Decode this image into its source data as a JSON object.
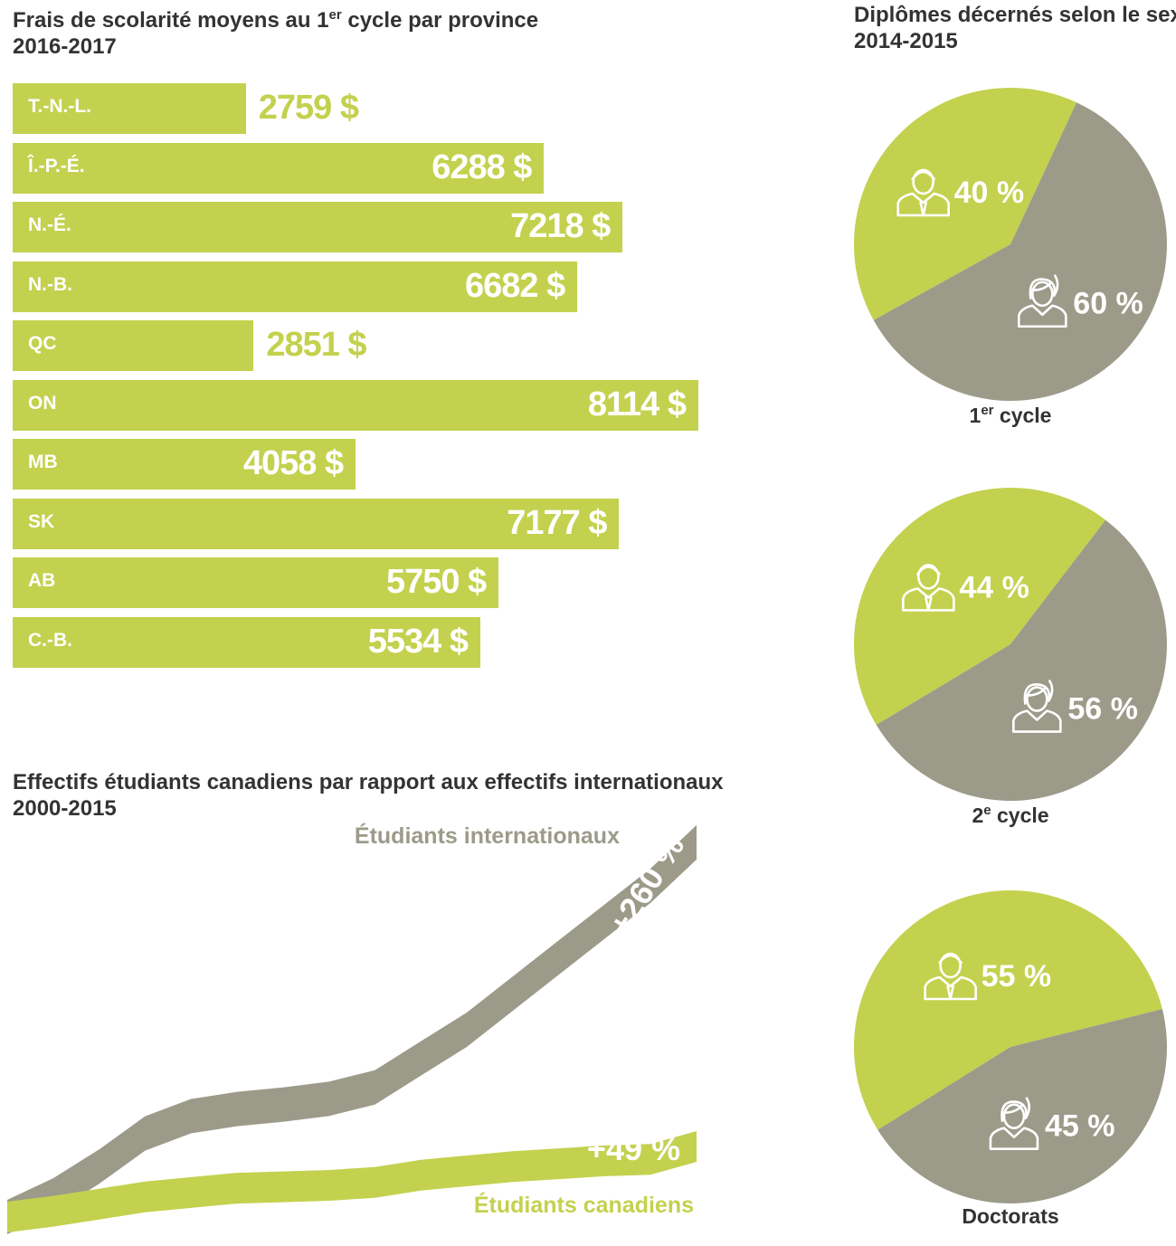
{
  "bar_chart": {
    "title_prefix": "Frais de scolarité moyens au 1",
    "title_sup": "er",
    "title_suffix": " cycle par province",
    "title_line2": "2016-2017"
  },
  "pie_section": {
    "title_line1": "Diplômes décernés selon le sexe",
    "title_line2": "2014-2015"
  },
  "line_chart": {
    "title_line1": "Effectifs étudiants canadiens par rapport aux effectifs internationaux",
    "title_line2": "2000-2015"
  },
  "colors": {
    "green": "#c3d14e",
    "gray": "#9c9b8a",
    "text": "#333333"
  },
  "chart_data": [
    {
      "type": "bar",
      "categories": [
        "T.-N.-L.",
        "Î.-P.-É.",
        "N.-É.",
        "N.-B.",
        "QC",
        "ON",
        "MB",
        "SK",
        "AB",
        "C.-B."
      ],
      "values": [
        2759,
        6288,
        7218,
        6682,
        2851,
        8114,
        4058,
        7177,
        5750,
        5534
      ],
      "value_labels": [
        "2759 $",
        "6288 $",
        "7218 $",
        "6682 $",
        "2851 $",
        "8114 $",
        "4058 $",
        "7177 $",
        "5750 $",
        "5534 $"
      ]
    },
    {
      "type": "pie",
      "label_prefix": "1",
      "label_sup": "er",
      "label_suffix": " cycle",
      "slices": [
        {
          "value": 40,
          "label": "40 %",
          "color": "#c3d14e",
          "icon": "man-icon"
        },
        {
          "value": 60,
          "label": "60 %",
          "color": "#9c9b8a",
          "icon": "woman-icon"
        }
      ]
    },
    {
      "type": "pie",
      "label_prefix": "2",
      "label_sup": "e",
      "label_suffix": " cycle",
      "slices": [
        {
          "value": 44,
          "label": "44 %",
          "color": "#c3d14e",
          "icon": "man-icon"
        },
        {
          "value": 56,
          "label": "56 %",
          "color": "#9c9b8a",
          "icon": "woman-icon"
        }
      ]
    },
    {
      "type": "pie",
      "label_prefix": "Doctorats",
      "label_sup": "",
      "label_suffix": "",
      "slices": [
        {
          "value": 55,
          "label": "55 %",
          "color": "#c3d14e",
          "icon": "man-icon"
        },
        {
          "value": 45,
          "label": "45 %",
          "color": "#9c9b8a",
          "icon": "woman-icon"
        }
      ]
    },
    {
      "type": "line",
      "x": [
        2000,
        2001,
        2002,
        2003,
        2004,
        2005,
        2006,
        2007,
        2008,
        2009,
        2010,
        2011,
        2012,
        2013,
        2014,
        2015
      ],
      "ylim": [
        0,
        370
      ],
      "series": [
        {
          "name": "Étudiants internationaux",
          "change_label": "+260 %",
          "color": "#9c9b8a",
          "values": [
            100,
            115,
            135,
            158,
            170,
            175,
            178,
            182,
            190,
            210,
            230,
            255,
            280,
            305,
            330,
            360
          ]
        },
        {
          "name": "Étudiants canadiens",
          "change_label": "+49 %",
          "color": "#c3d14e",
          "values": [
            100,
            104,
            109,
            114,
            117,
            120,
            121,
            122,
            124,
            129,
            132,
            135,
            137,
            139,
            140,
            149
          ]
        }
      ]
    }
  ]
}
